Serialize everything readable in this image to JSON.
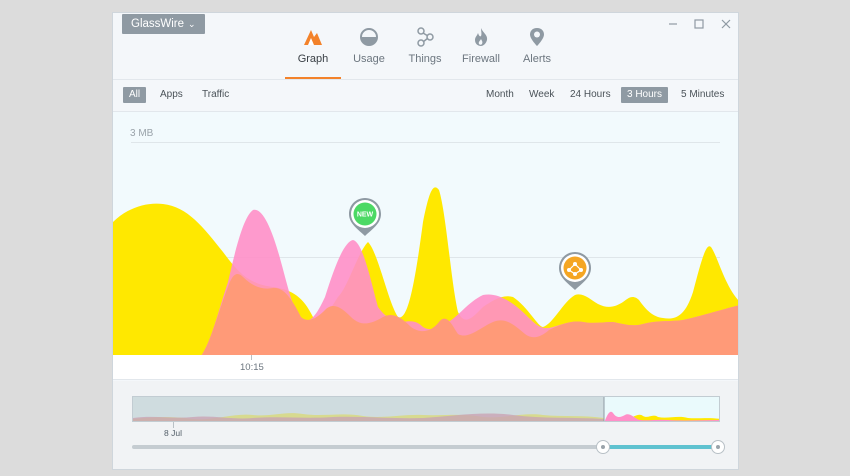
{
  "app": {
    "menu_label": "GlassWire"
  },
  "window_controls": {
    "minimize_icon": "minimize-icon",
    "maximize_icon": "maximize-icon",
    "close_icon": "close-icon"
  },
  "nav": {
    "tabs": [
      {
        "label": "Graph",
        "icon": "graph-icon",
        "active": true
      },
      {
        "label": "Usage",
        "icon": "usage-icon",
        "active": false
      },
      {
        "label": "Things",
        "icon": "things-icon",
        "active": false
      },
      {
        "label": "Firewall",
        "icon": "firewall-icon",
        "active": false
      },
      {
        "label": "Alerts",
        "icon": "alerts-icon",
        "active": false
      }
    ],
    "accent_color": "#f3822a"
  },
  "filters": {
    "all": "All",
    "apps": "Apps",
    "traffic": "Traffic",
    "selected": "All"
  },
  "ranges": {
    "month": "Month",
    "week": "Week",
    "hours24": "24 Hours",
    "hours3": "3 Hours",
    "minutes5": "5 Minutes",
    "selected": "3 Hours"
  },
  "graph": {
    "y_label": "3 MB",
    "time_label": "10:15",
    "colors": {
      "incoming": "#ffe800",
      "outgoing": "#ff8fc8",
      "overlap": "#ff9a78"
    },
    "pins": [
      {
        "label": "NEW",
        "color": "#4cd964",
        "icon": "new-app-badge"
      },
      {
        "label": "",
        "color": "#f5a623",
        "icon": "network-hub-icon"
      }
    ]
  },
  "overview": {
    "date_label": "8 Jul"
  }
}
